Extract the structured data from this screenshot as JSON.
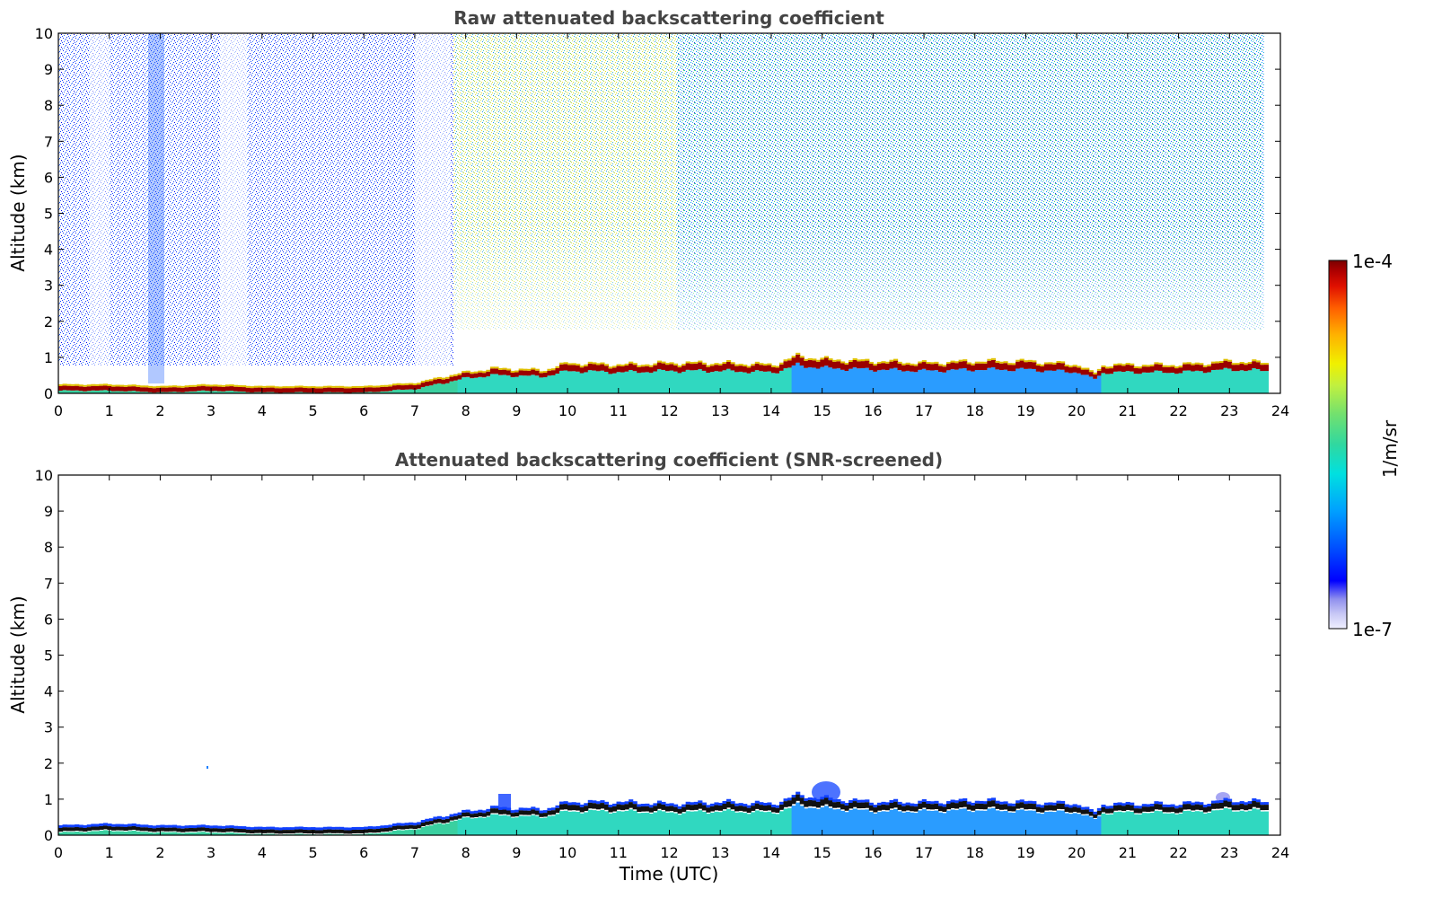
{
  "figure": {
    "xlabel": "Time (UTC)",
    "colorbar": {
      "label": "1/m/sr",
      "max_label": "1e-4",
      "min_label": "1e-7",
      "range": [
        1e-07,
        0.0001
      ],
      "scale": "log",
      "colormap_stops": [
        "#f0f0ff",
        "#c8c8f5",
        "#9090ee",
        "#0000ff",
        "#0050ff",
        "#00a0ff",
        "#00e0e0",
        "#30d8a0",
        "#70e070",
        "#c0f040",
        "#f0f000",
        "#ffb000",
        "#ff6000",
        "#e01000",
        "#b00000",
        "#7a0000"
      ]
    }
  },
  "chart_data": [
    {
      "type": "heatmap",
      "title": "Raw attenuated backscattering coefficient",
      "xlabel": "",
      "ylabel": "Altitude (km)",
      "xlim": [
        0,
        24
      ],
      "ylim": [
        0,
        10
      ],
      "xticks": [
        "0",
        "1",
        "2",
        "3",
        "4",
        "5",
        "6",
        "7",
        "8",
        "9",
        "10",
        "11",
        "12",
        "13",
        "14",
        "15",
        "16",
        "17",
        "18",
        "19",
        "20",
        "21",
        "22",
        "23",
        "24"
      ],
      "yticks": [
        "0",
        "1",
        "2",
        "3",
        "4",
        "5",
        "6",
        "7",
        "8",
        "9",
        "10"
      ],
      "data_end_time": 23.7,
      "layer_top_km": [
        {
          "t": 0,
          "h": 0.2
        },
        {
          "t": 1,
          "h": 0.2
        },
        {
          "t": 2,
          "h": 0.15
        },
        {
          "t": 3,
          "h": 0.2
        },
        {
          "t": 4,
          "h": 0.15
        },
        {
          "t": 5,
          "h": 0.15
        },
        {
          "t": 6,
          "h": 0.15
        },
        {
          "t": 7,
          "h": 0.25
        },
        {
          "t": 7.8,
          "h": 0.5
        },
        {
          "t": 8.5,
          "h": 0.65
        },
        {
          "t": 9.5,
          "h": 0.6
        },
        {
          "t": 10,
          "h": 0.8
        },
        {
          "t": 11,
          "h": 0.75
        },
        {
          "t": 12,
          "h": 0.8
        },
        {
          "t": 13,
          "h": 0.8
        },
        {
          "t": 14,
          "h": 0.75
        },
        {
          "t": 14.5,
          "h": 1.0
        },
        {
          "t": 15,
          "h": 0.9
        },
        {
          "t": 16,
          "h": 0.85
        },
        {
          "t": 17,
          "h": 0.8
        },
        {
          "t": 18,
          "h": 0.85
        },
        {
          "t": 19,
          "h": 0.85
        },
        {
          "t": 20,
          "h": 0.75
        },
        {
          "t": 20.3,
          "h": 0.5
        },
        {
          "t": 20.5,
          "h": 0.75
        },
        {
          "t": 22,
          "h": 0.75
        },
        {
          "t": 23,
          "h": 0.85
        },
        {
          "t": 23.7,
          "h": 0.8
        }
      ]
    },
    {
      "type": "heatmap",
      "title": "Attenuated backscattering coefficient (SNR-screened)",
      "xlabel": "Time (UTC)",
      "ylabel": "Altitude (km)",
      "xlim": [
        0,
        24
      ],
      "ylim": [
        0,
        10
      ],
      "xticks": [
        "0",
        "1",
        "2",
        "3",
        "4",
        "5",
        "6",
        "7",
        "8",
        "9",
        "10",
        "11",
        "12",
        "13",
        "14",
        "15",
        "16",
        "17",
        "18",
        "19",
        "20",
        "21",
        "22",
        "23",
        "24"
      ],
      "yticks": [
        "0",
        "1",
        "2",
        "3",
        "4",
        "5",
        "6",
        "7",
        "8",
        "9",
        "10"
      ],
      "data_end_time": 23.7,
      "layer_top_km": [
        {
          "t": 0,
          "h": 0.2
        },
        {
          "t": 1,
          "h": 0.25
        },
        {
          "t": 2,
          "h": 0.2
        },
        {
          "t": 3,
          "h": 0.2
        },
        {
          "t": 4,
          "h": 0.15
        },
        {
          "t": 5,
          "h": 0.15
        },
        {
          "t": 6,
          "h": 0.15
        },
        {
          "t": 7,
          "h": 0.3
        },
        {
          "t": 7.8,
          "h": 0.55
        },
        {
          "t": 8.5,
          "h": 0.7
        },
        {
          "t": 9.5,
          "h": 0.65
        },
        {
          "t": 10,
          "h": 0.85
        },
        {
          "t": 11,
          "h": 0.85
        },
        {
          "t": 12,
          "h": 0.8
        },
        {
          "t": 13,
          "h": 0.85
        },
        {
          "t": 14,
          "h": 0.8
        },
        {
          "t": 14.5,
          "h": 1.05
        },
        {
          "t": 15,
          "h": 0.95
        },
        {
          "t": 16,
          "h": 0.85
        },
        {
          "t": 17,
          "h": 0.85
        },
        {
          "t": 18,
          "h": 0.9
        },
        {
          "t": 19,
          "h": 0.85
        },
        {
          "t": 20,
          "h": 0.8
        },
        {
          "t": 20.3,
          "h": 0.55
        },
        {
          "t": 20.5,
          "h": 0.8
        },
        {
          "t": 22,
          "h": 0.8
        },
        {
          "t": 23,
          "h": 0.9
        },
        {
          "t": 23.7,
          "h": 0.85
        }
      ]
    }
  ]
}
